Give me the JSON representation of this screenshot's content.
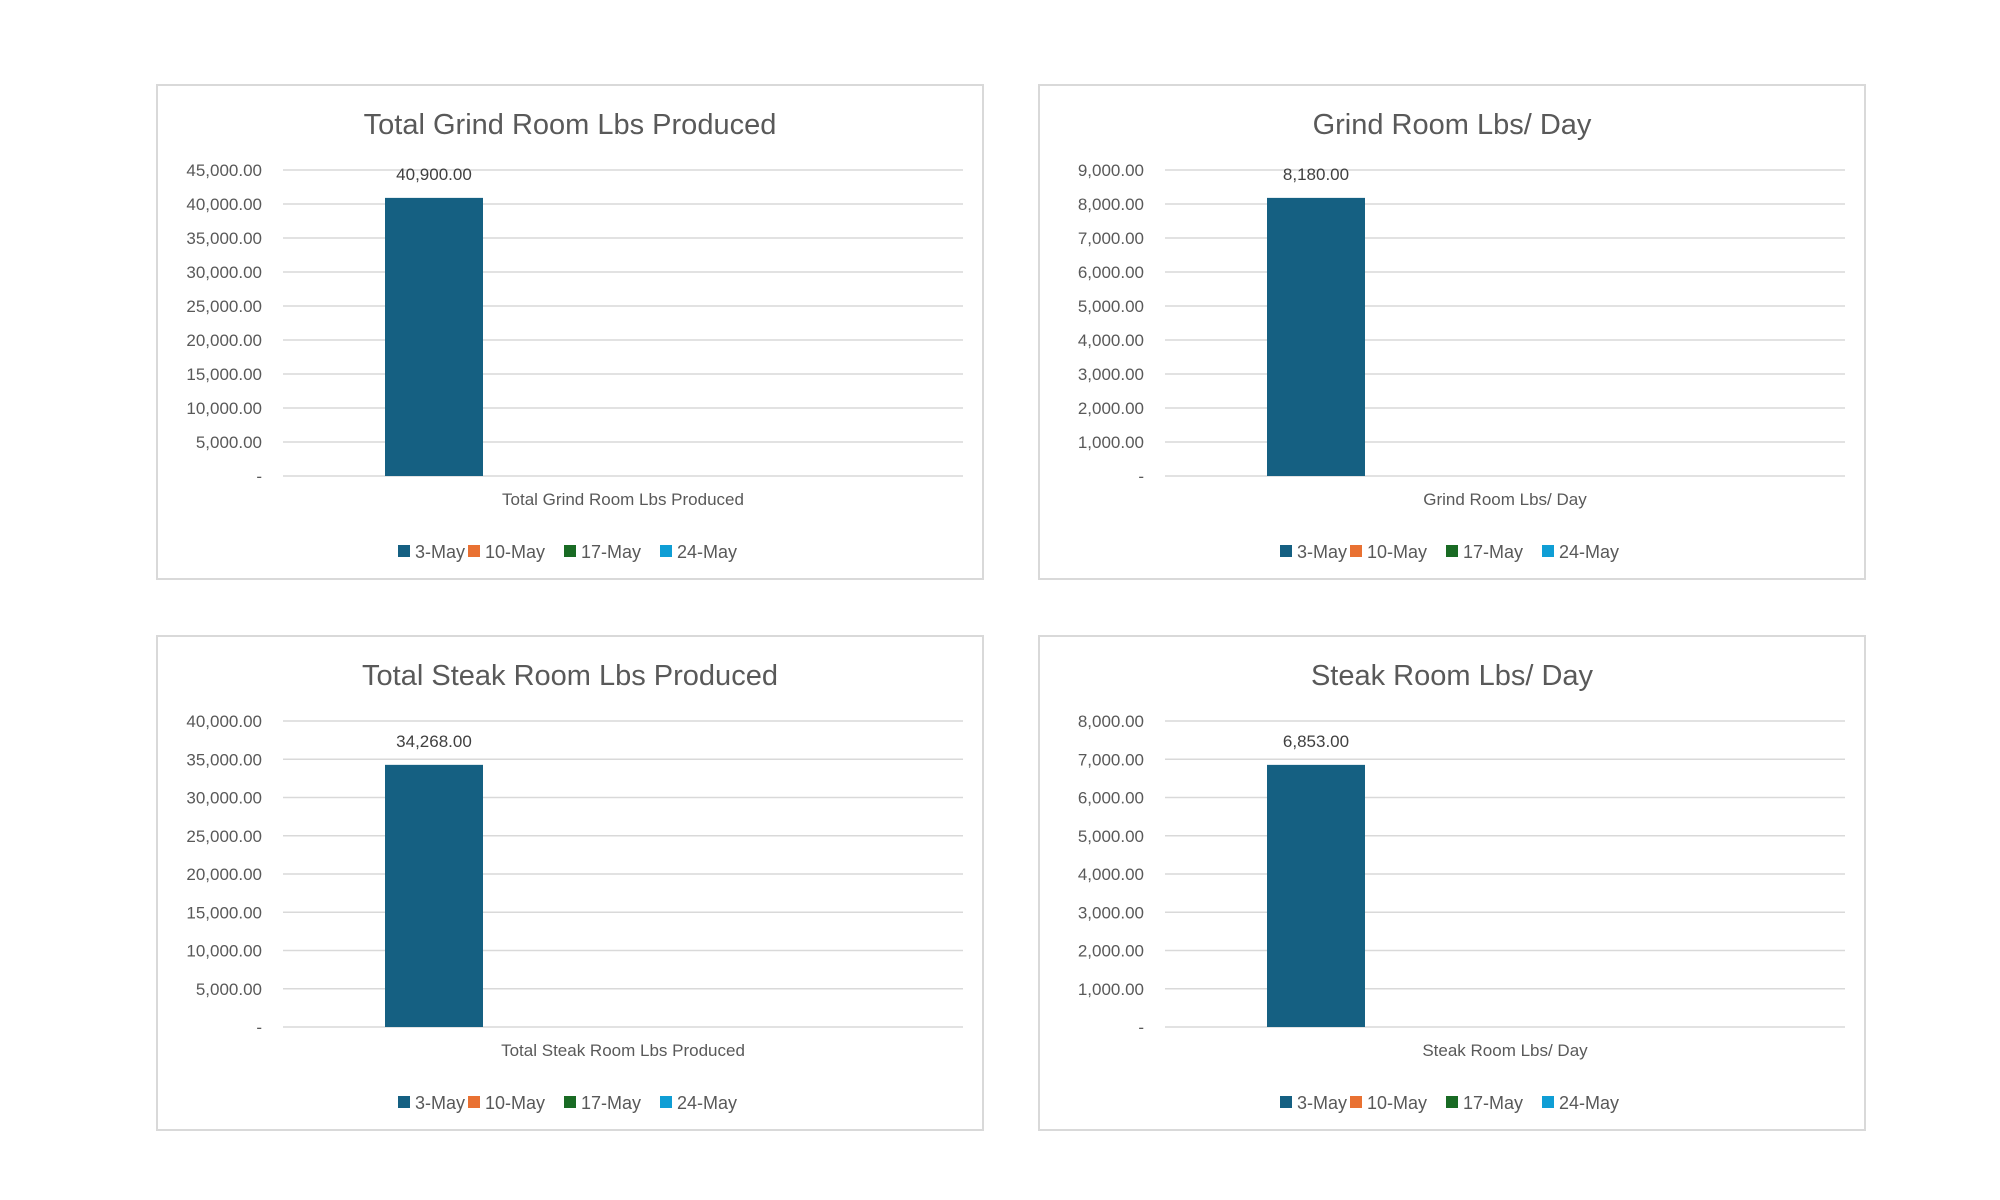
{
  "colors": {
    "series": [
      "#156082",
      "#E97132",
      "#196B24",
      "#0F9ED5"
    ],
    "grid": "#d9d9d9",
    "text": "#595959"
  },
  "chart_data": [
    {
      "type": "bar",
      "title": "Total Grind Room Lbs Produced",
      "categories": [
        "Total Grind Room Lbs Produced"
      ],
      "series": [
        {
          "name": "3-May",
          "values": [
            40900
          ]
        },
        {
          "name": "10-May",
          "values": [
            null
          ]
        },
        {
          "name": "17-May",
          "values": [
            null
          ]
        },
        {
          "name": "24-May",
          "values": [
            null
          ]
        }
      ],
      "data_labels": [
        "40,900.00"
      ],
      "ylim": [
        0,
        45000
      ],
      "yticks": [
        "-",
        "5,000.00",
        "10,000.00",
        "15,000.00",
        "20,000.00",
        "25,000.00",
        "30,000.00",
        "35,000.00",
        "40,000.00",
        "45,000.00"
      ],
      "grid": true,
      "legend": "bottom"
    },
    {
      "type": "bar",
      "title": "Grind Room Lbs/ Day",
      "categories": [
        "Grind Room Lbs/ Day"
      ],
      "series": [
        {
          "name": "3-May",
          "values": [
            8180
          ]
        },
        {
          "name": "10-May",
          "values": [
            null
          ]
        },
        {
          "name": "17-May",
          "values": [
            null
          ]
        },
        {
          "name": "24-May",
          "values": [
            null
          ]
        }
      ],
      "data_labels": [
        "8,180.00"
      ],
      "ylim": [
        0,
        9000
      ],
      "yticks": [
        "-",
        "1,000.00",
        "2,000.00",
        "3,000.00",
        "4,000.00",
        "5,000.00",
        "6,000.00",
        "7,000.00",
        "8,000.00",
        "9,000.00"
      ],
      "grid": true,
      "legend": "bottom"
    },
    {
      "type": "bar",
      "title": "Total Steak Room Lbs Produced",
      "categories": [
        "Total Steak Room Lbs Produced"
      ],
      "series": [
        {
          "name": "3-May",
          "values": [
            34268
          ]
        },
        {
          "name": "10-May",
          "values": [
            null
          ]
        },
        {
          "name": "17-May",
          "values": [
            null
          ]
        },
        {
          "name": "24-May",
          "values": [
            null
          ]
        }
      ],
      "data_labels": [
        "34,268.00"
      ],
      "ylim": [
        0,
        40000
      ],
      "yticks": [
        "-",
        "5,000.00",
        "10,000.00",
        "15,000.00",
        "20,000.00",
        "25,000.00",
        "30,000.00",
        "35,000.00",
        "40,000.00"
      ],
      "grid": true,
      "legend": "bottom"
    },
    {
      "type": "bar",
      "title": "Steak Room Lbs/ Day",
      "categories": [
        "Steak Room Lbs/ Day"
      ],
      "series": [
        {
          "name": "3-May",
          "values": [
            6853
          ]
        },
        {
          "name": "10-May",
          "values": [
            null
          ]
        },
        {
          "name": "17-May",
          "values": [
            null
          ]
        },
        {
          "name": "24-May",
          "values": [
            null
          ]
        }
      ],
      "data_labels": [
        "6,853.00"
      ],
      "ylim": [
        0,
        8000
      ],
      "yticks": [
        "-",
        "1,000.00",
        "2,000.00",
        "3,000.00",
        "4,000.00",
        "5,000.00",
        "6,000.00",
        "7,000.00",
        "8,000.00"
      ],
      "grid": true,
      "legend": "bottom"
    }
  ]
}
